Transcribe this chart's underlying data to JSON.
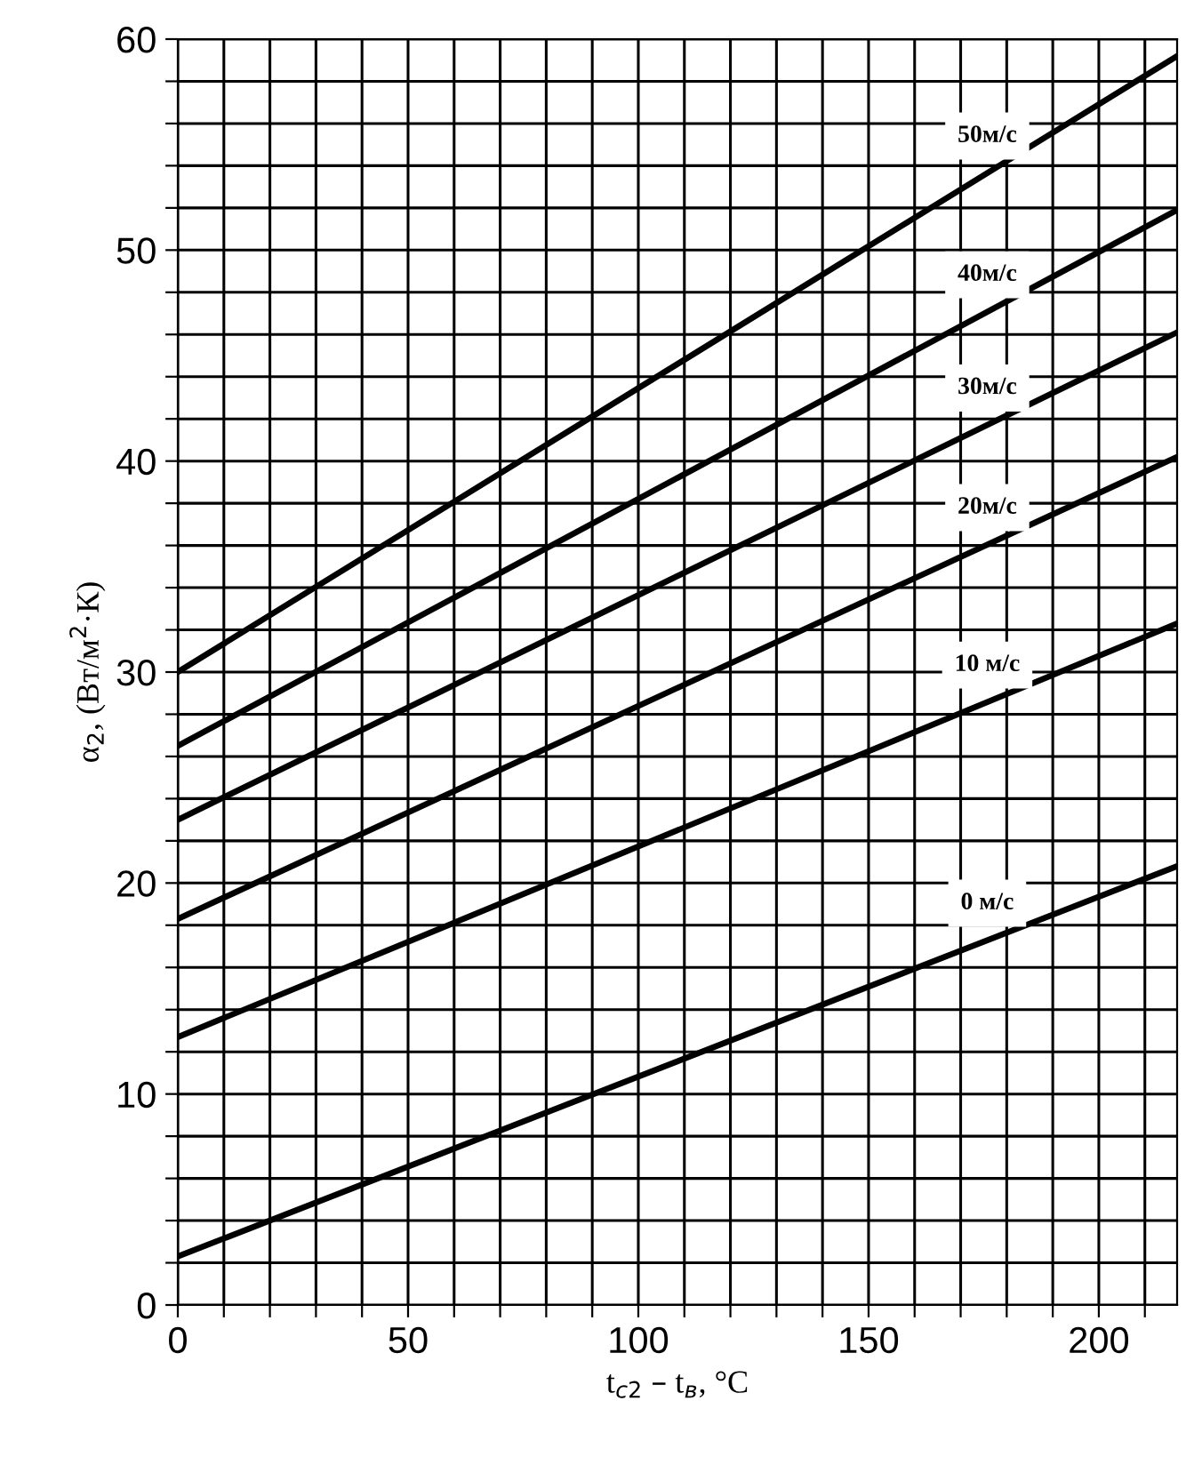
{
  "chart_data": {
    "type": "line",
    "xlabel": "t$_{с2}$ – t$_{в}$, °C",
    "ylabel": "α$_{2}$, (Вт/м$^{2}$·К)",
    "x": [
      0,
      217
    ],
    "series": [
      {
        "name": "0 м/с",
        "color": "#000000",
        "values": [
          2.3,
          20.8
        ]
      },
      {
        "name": "10 м/с",
        "color": "#000000",
        "values": [
          12.7,
          32.3
        ]
      },
      {
        "name": "20м/с",
        "color": "#000000",
        "values": [
          18.3,
          40.2
        ]
      },
      {
        "name": "30м/с",
        "color": "#000000",
        "values": [
          23,
          46.1
        ]
      },
      {
        "name": "40м/с",
        "color": "#000000",
        "values": [
          26.5,
          51.9
        ]
      },
      {
        "name": "50м/с",
        "color": "#000000",
        "values": [
          30,
          59.2
        ]
      }
    ],
    "xlim": [
      0,
      217
    ],
    "ylim": [
      0,
      60
    ],
    "xticks": [
      0,
      {
        "value": 10,
        "label": null
      },
      {
        "value": 20,
        "label": null
      },
      {
        "value": 30,
        "label": null
      },
      {
        "value": 40,
        "label": null
      },
      50,
      {
        "value": 60,
        "label": null
      },
      {
        "value": 70,
        "label": null
      },
      {
        "value": 80,
        "label": null
      },
      {
        "value": 90,
        "label": null
      },
      100,
      {
        "value": 110,
        "label": null
      },
      {
        "value": 120,
        "label": null
      },
      {
        "value": 130,
        "label": null
      },
      {
        "value": 140,
        "label": null
      },
      150,
      {
        "value": 160,
        "label": null
      },
      {
        "value": 170,
        "label": null
      },
      {
        "value": 180,
        "label": null
      },
      {
        "value": 190,
        "label": null
      },
      200,
      {
        "value": 210,
        "label": null
      }
    ],
    "yticks": [
      0,
      {
        "value": 2,
        "label": null
      },
      {
        "value": 4,
        "label": null
      },
      {
        "value": 6,
        "label": null
      },
      {
        "value": 8,
        "label": null
      },
      10,
      {
        "value": 12,
        "label": null
      },
      {
        "value": 14,
        "label": null
      },
      {
        "value": 16,
        "label": null
      },
      {
        "value": 18,
        "label": null
      },
      20,
      {
        "value": 22,
        "label": null
      },
      {
        "value": 24,
        "label": null
      },
      {
        "value": 26,
        "label": null
      },
      {
        "value": 28,
        "label": null
      },
      30,
      {
        "value": 32,
        "label": null
      },
      {
        "value": 34,
        "label": null
      },
      {
        "value": 36,
        "label": null
      },
      {
        "value": 38,
        "label": null
      },
      40,
      {
        "value": 42,
        "label": null
      },
      {
        "value": 44,
        "label": null
      },
      {
        "value": 46,
        "label": null
      },
      {
        "value": 48,
        "label": null
      },
      50,
      {
        "value": 52,
        "label": null
      },
      {
        "value": 54,
        "label": null
      },
      {
        "value": 56,
        "label": null
      },
      {
        "value": 58,
        "label": null
      },
      60
    ],
    "grid": true,
    "line_style": "solid",
    "marker": "none",
    "legend": false
  }
}
